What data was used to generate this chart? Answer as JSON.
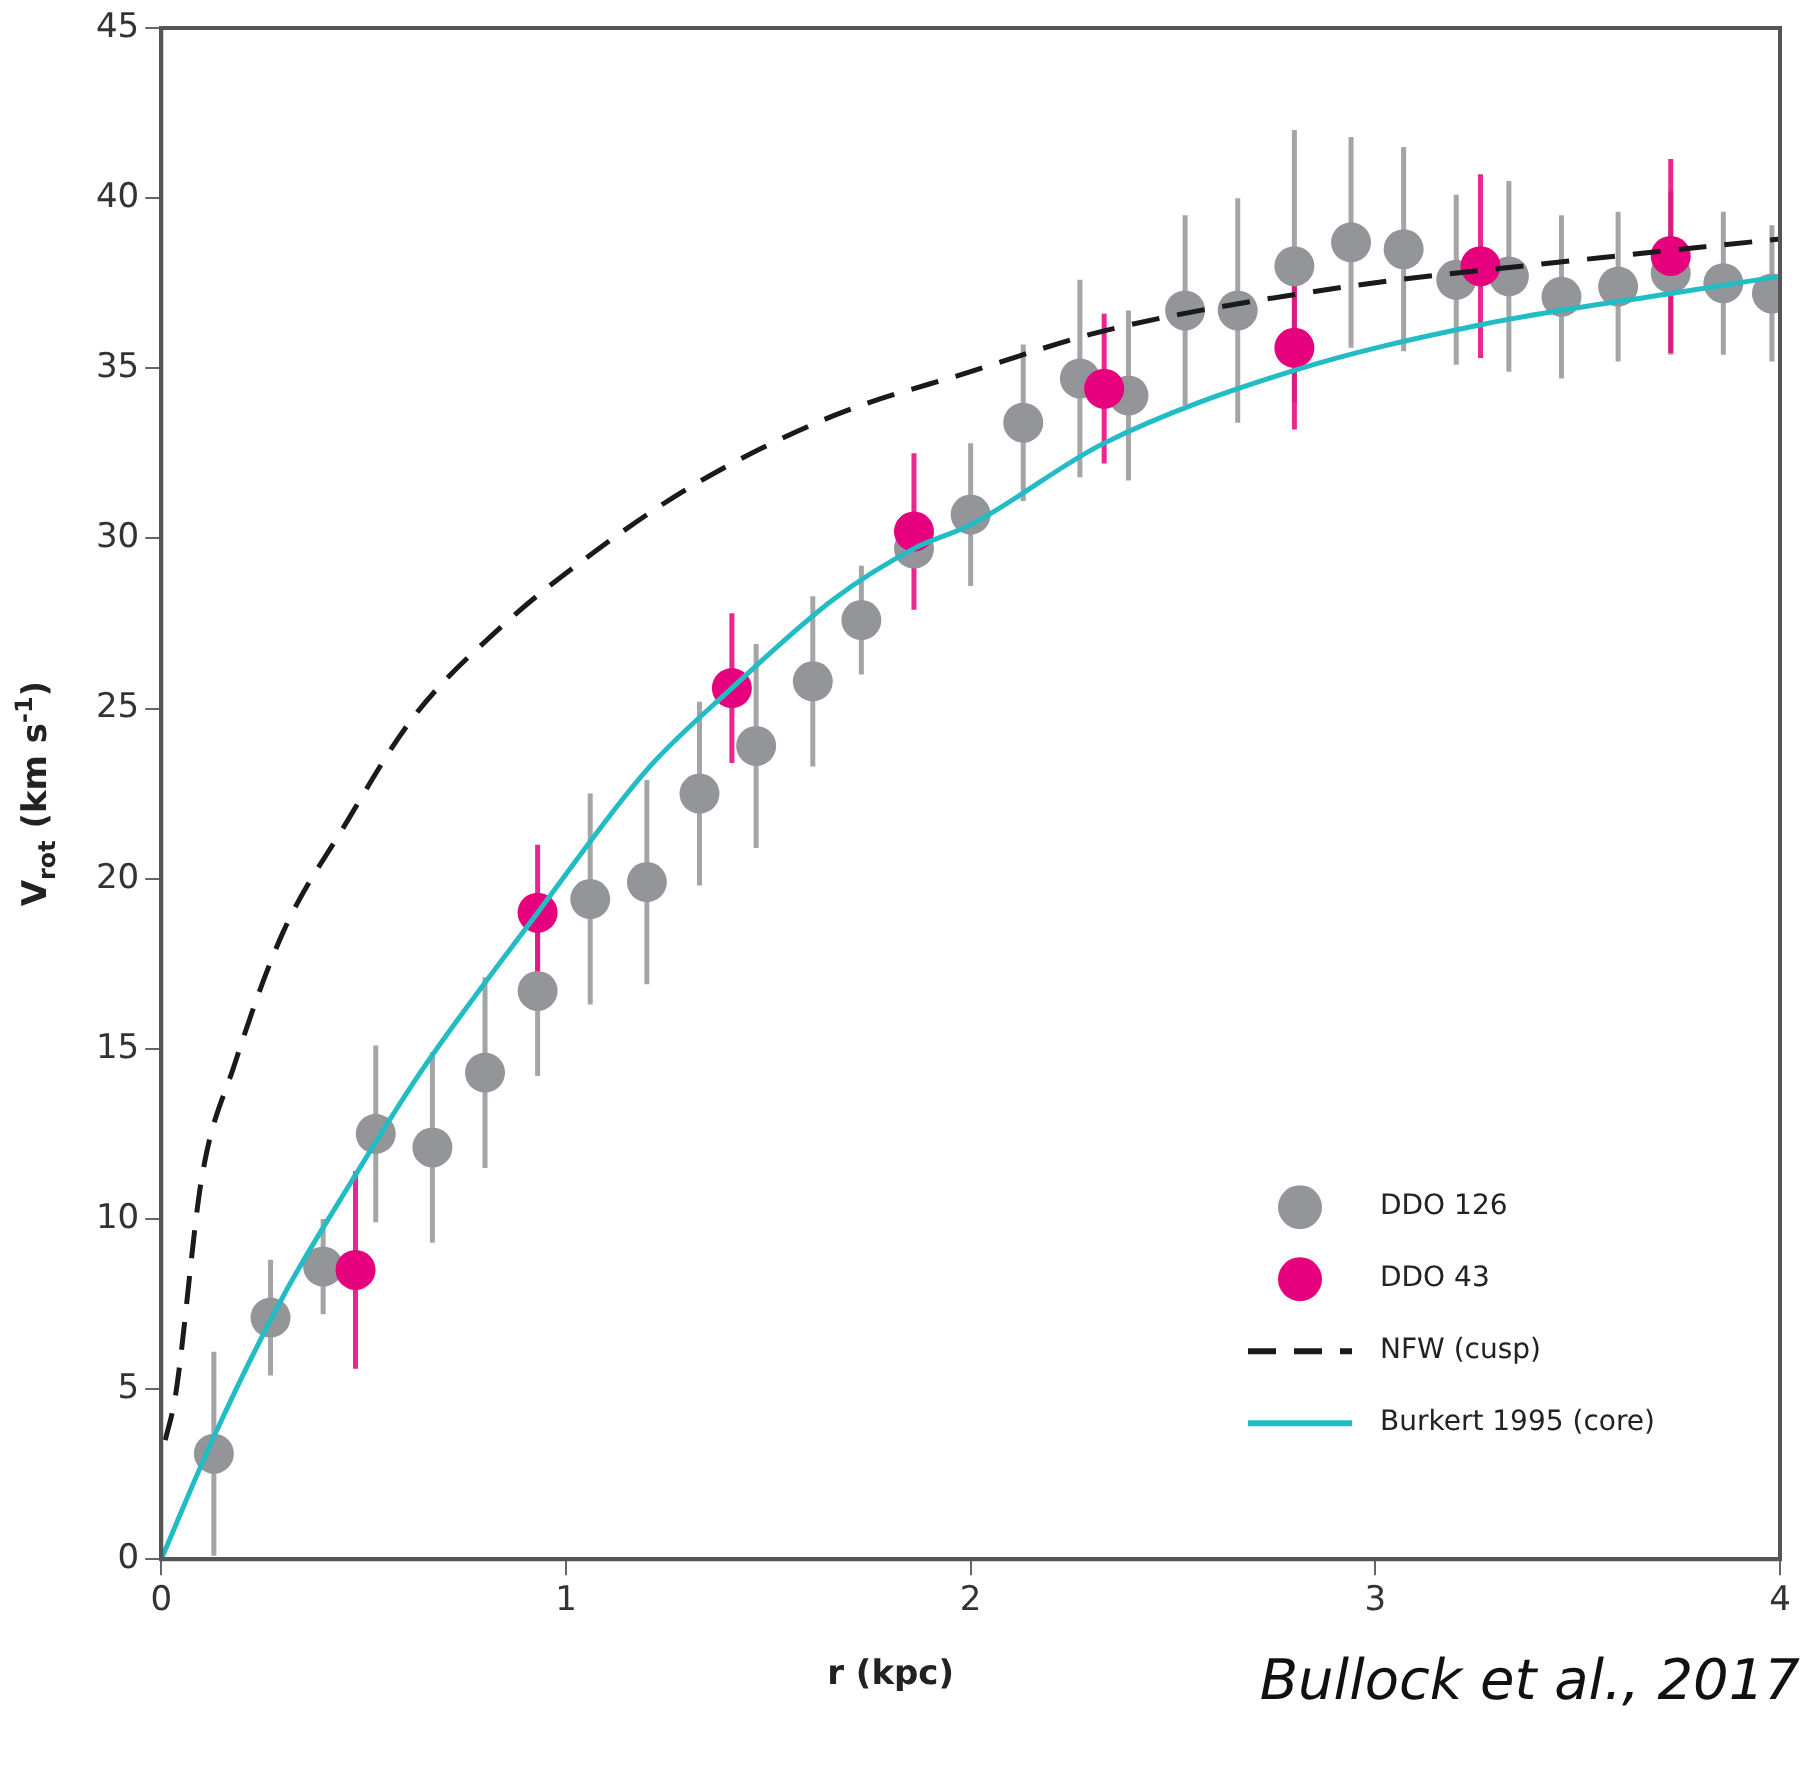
{
  "chart_data": {
    "type": "scatter",
    "xlabel": "r (kpc)",
    "ylabel": "V$_{rot}$ (km s$^{-1}$)",
    "xlim": [
      0,
      4
    ],
    "xticks": [
      0,
      1,
      2,
      3,
      4
    ],
    "ylim": [
      0,
      45
    ],
    "yticks": [
      0,
      5,
      10,
      15,
      20,
      25,
      30,
      35,
      40,
      45
    ],
    "grid": false,
    "legend": "bottom right",
    "annotations": [
      "Bullock et al., 2017"
    ],
    "series": [
      {
        "name": "DDO 126",
        "type": "scatter",
        "marker": "circle",
        "color": "#939598",
        "x": [
          0.13,
          0.27,
          0.4,
          0.53,
          0.67,
          0.8,
          0.93,
          1.06,
          1.2,
          1.33,
          1.47,
          1.61,
          1.73,
          1.86,
          2.0,
          2.13,
          2.27,
          2.39,
          2.53,
          2.66,
          2.8,
          2.94,
          3.07,
          3.2,
          3.33,
          3.46,
          3.6,
          3.73,
          3.86,
          3.98
        ],
        "values": [
          3.1,
          7.1,
          8.6,
          12.5,
          12.1,
          14.3,
          16.7,
          19.4,
          19.9,
          22.5,
          23.9,
          25.8,
          27.6,
          29.7,
          30.7,
          33.4,
          34.7,
          34.2,
          36.7,
          36.7,
          38.0,
          38.7,
          38.5,
          37.6,
          37.7,
          37.1,
          37.4,
          37.8,
          37.5,
          37.2
        ],
        "errors": [
          3,
          1.7,
          1.4,
          2.6,
          2.8,
          2.8,
          2.5,
          3.1,
          3,
          2.7,
          3,
          2.5,
          1.6,
          null,
          2.1,
          2.3,
          2.9,
          2.5,
          2.8,
          3.3,
          4,
          3.1,
          3,
          2.5,
          2.8,
          2.4,
          2.2,
          2.4,
          2.1,
          2
        ]
      },
      {
        "name": "DDO 43",
        "type": "scatter",
        "marker": "circle",
        "color": "#e6007e",
        "x": [
          0.48,
          0.93,
          1.41,
          1.86,
          2.33,
          2.8,
          3.26,
          3.73
        ],
        "values": [
          8.5,
          19.0,
          25.6,
          30.2,
          34.4,
          35.6,
          38.0,
          38.3
        ],
        "errors": [
          2.9,
          2,
          2.2,
          2.3,
          2.2,
          2.4,
          2.7,
          2.85
        ]
      },
      {
        "name": "NFW (cusp)",
        "type": "line",
        "marker": "none",
        "line_style": "dashed",
        "color": "#1a1a1a",
        "x": [
          0.01,
          0.035,
          0.1,
          0.18,
          0.3,
          0.45,
          0.62,
          0.84,
          1.07,
          1.32,
          1.66,
          2.0,
          2.33,
          2.93,
          3.44,
          4.0
        ],
        "values": [
          3.5,
          4.8,
          11.2,
          14.5,
          18.4,
          21.5,
          24.7,
          27.4,
          29.6,
          31.6,
          33.6,
          34.9,
          36.1,
          37.4,
          38.1,
          38.8
        ]
      },
      {
        "name": "Burkert 1995 (core)",
        "type": "line",
        "marker": "none",
        "line_style": "solid",
        "color": "#22bcc4",
        "x": [
          0.0,
          0.13,
          0.3,
          0.47,
          0.64,
          0.93,
          1.2,
          1.41,
          1.66,
          1.86,
          2.0,
          2.33,
          2.79,
          3.27,
          3.73,
          4.0
        ],
        "values": [
          0.0,
          3.6,
          7.7,
          11.1,
          14.3,
          19.0,
          23.2,
          25.6,
          28.2,
          29.7,
          30.4,
          32.8,
          34.9,
          36.3,
          37.2,
          37.7
        ]
      }
    ]
  }
}
